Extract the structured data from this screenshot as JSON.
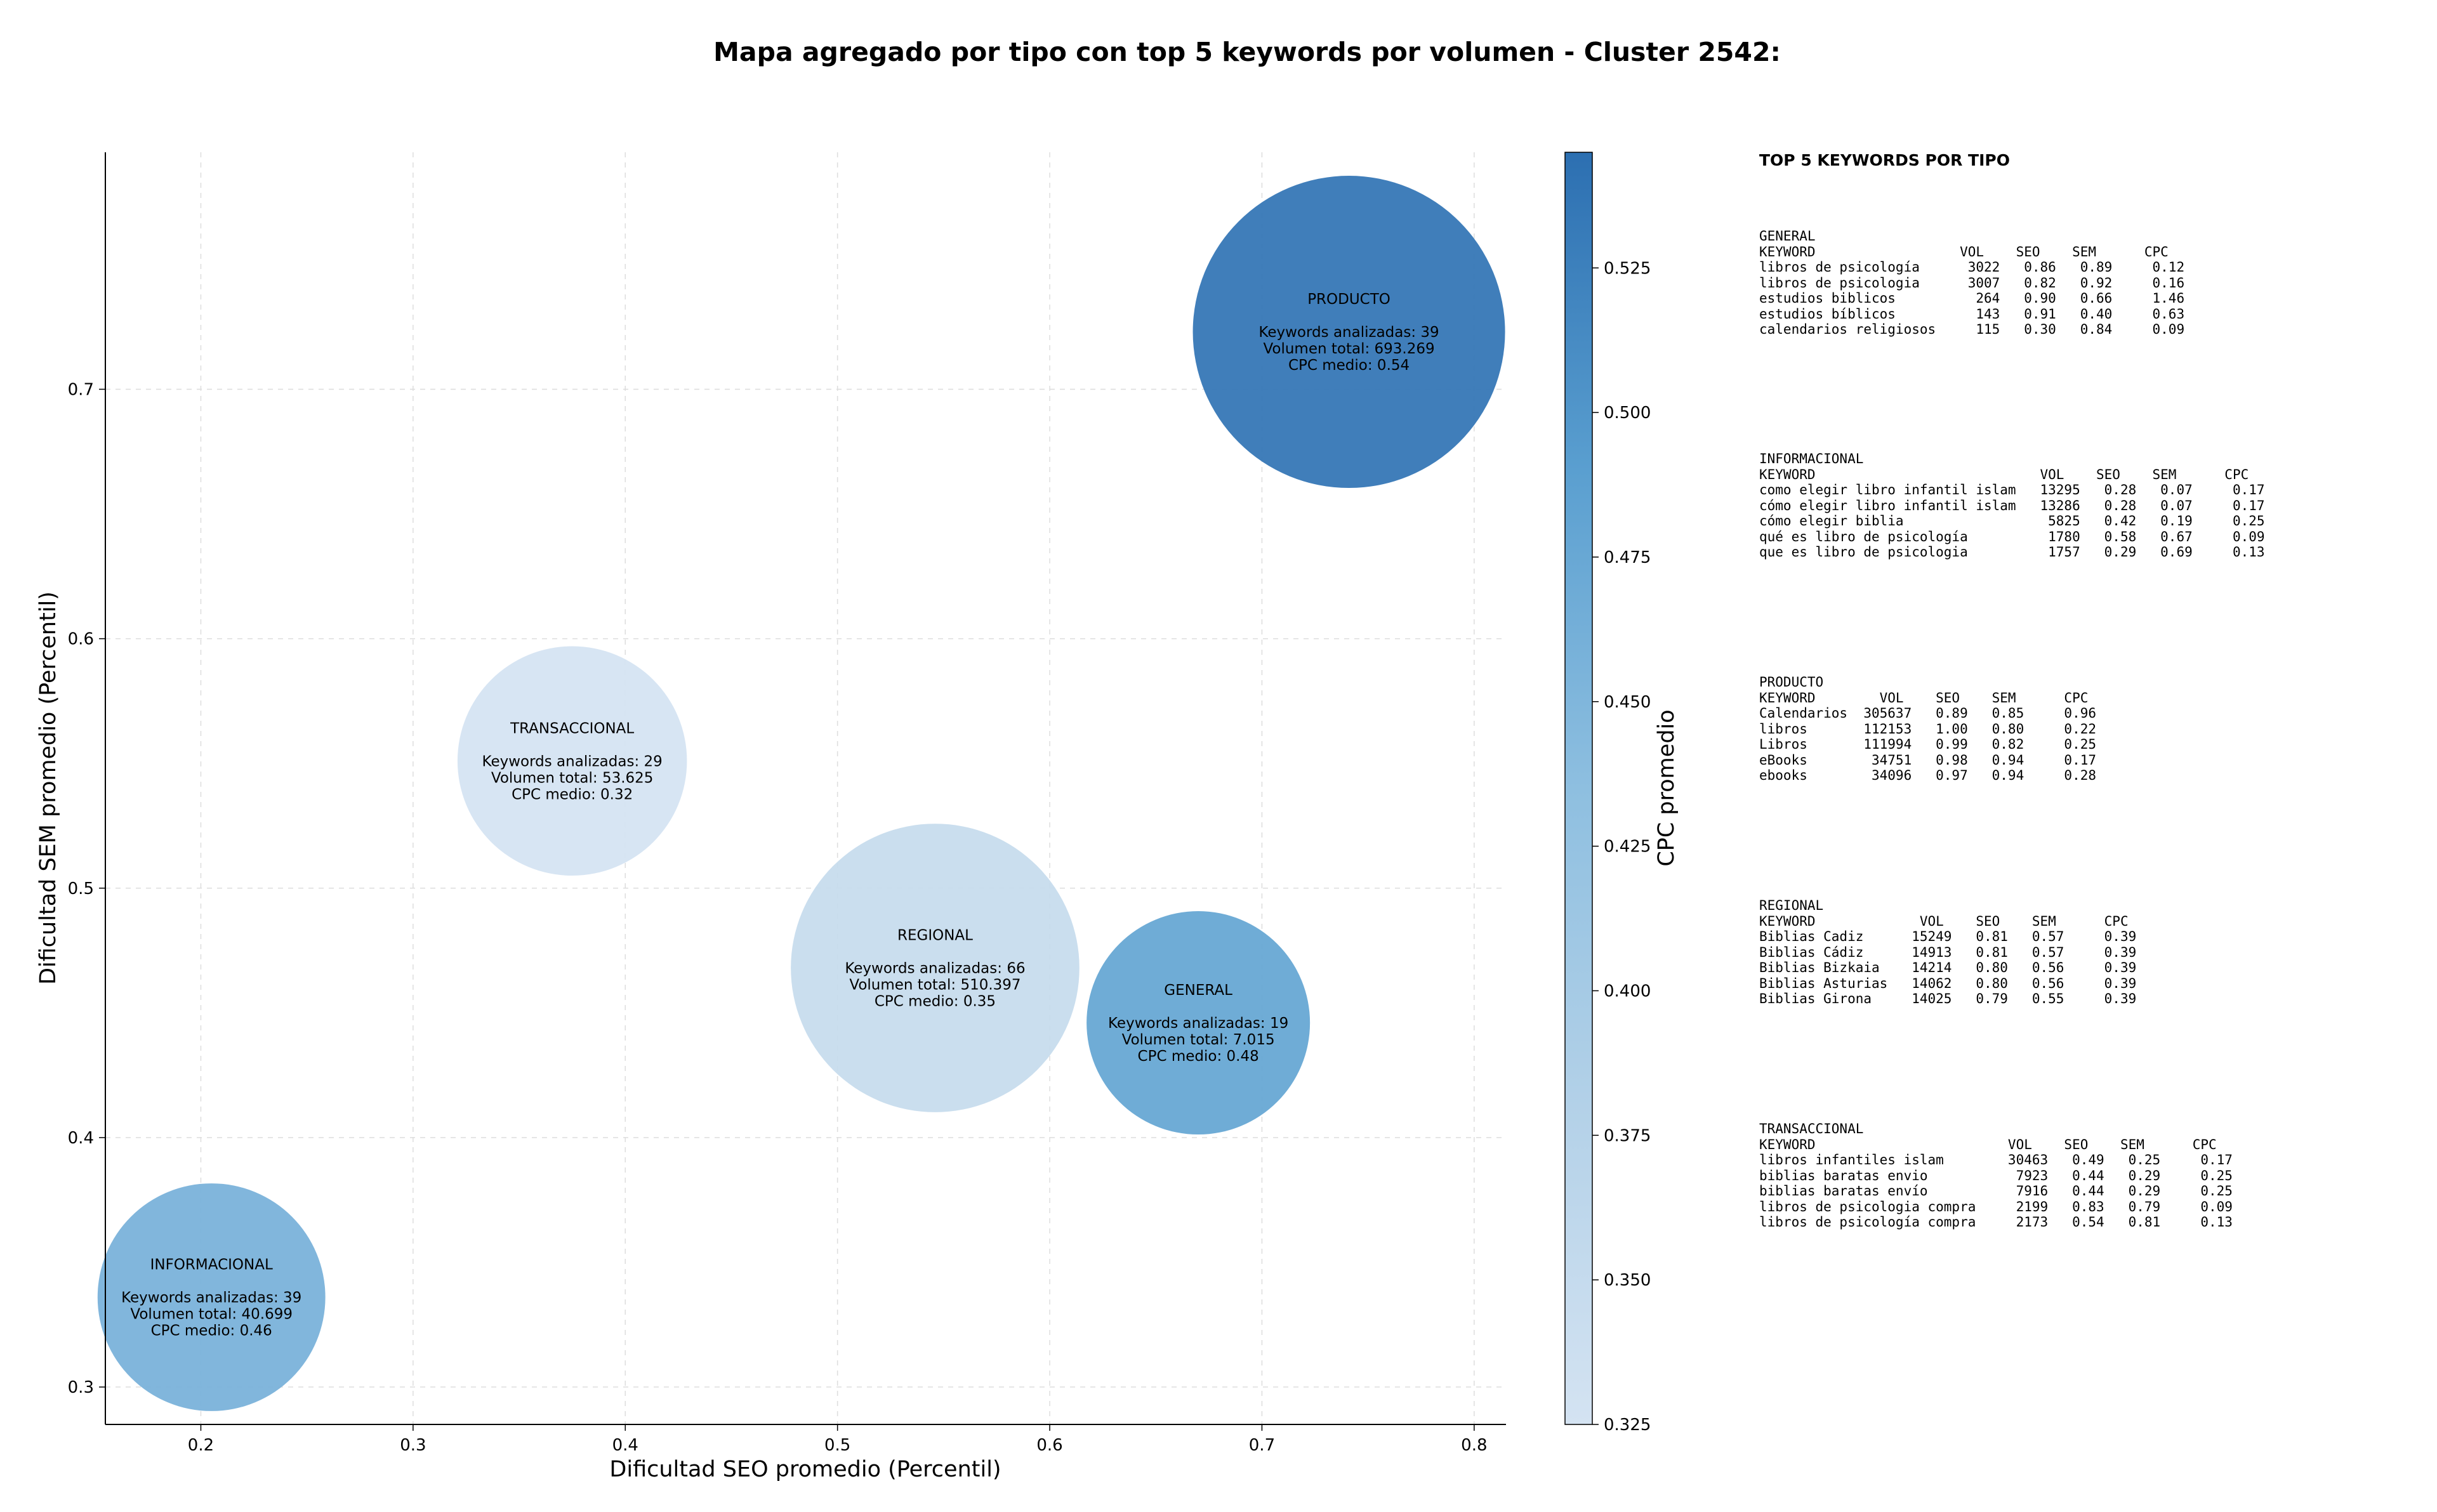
{
  "chart_data": {
    "type": "scatter",
    "title": "Mapa agregado por tipo con top 5 keywords por volumen - Cluster 2542:",
    "xlabel": "Dificultad SEO promedio (Percentil)",
    "ylabel": "Dificultad SEM promedio (Percentil)",
    "xlim": [
      0.155,
      0.815
    ],
    "ylim": [
      0.285,
      0.795
    ],
    "xticks": [
      "0.2",
      "0.3",
      "0.4",
      "0.5",
      "0.6",
      "0.7",
      "0.8"
    ],
    "yticks": [
      "0.3",
      "0.4",
      "0.5",
      "0.6",
      "0.7"
    ],
    "grid": true,
    "colorbar": {
      "label": "CPC promedio",
      "range": [
        0.325,
        0.545
      ],
      "ticks": [
        "0.325",
        "0.350",
        "0.375",
        "0.400",
        "0.425",
        "0.450",
        "0.475",
        "0.500",
        "0.525"
      ]
    },
    "points": [
      {
        "name": "PRODUCTO",
        "x": 0.741,
        "y": 0.723,
        "keywords_label": "Keywords analizadas: 39",
        "volume_label": "Volumen total: 693.269",
        "cpc_label": "CPC medio: 0.54",
        "volume": 693269,
        "cpc": 0.54
      },
      {
        "name": "TRANSACCIONAL",
        "x": 0.375,
        "y": 0.551,
        "keywords_label": "Keywords analizadas: 29",
        "volume_label": "Volumen total: 53.625",
        "cpc_label": "CPC medio: 0.32",
        "volume": 53625,
        "cpc": 0.32
      },
      {
        "name": "REGIONAL",
        "x": 0.546,
        "y": 0.468,
        "keywords_label": "Keywords analizadas: 66",
        "volume_label": "Volumen total: 510.397",
        "cpc_label": "CPC medio: 0.35",
        "volume": 510397,
        "cpc": 0.35
      },
      {
        "name": "GENERAL",
        "x": 0.67,
        "y": 0.446,
        "keywords_label": "Keywords analizadas: 19",
        "volume_label": "Volumen total: 7.015",
        "cpc_label": "CPC medio: 0.48",
        "volume": 7015,
        "cpc": 0.48
      },
      {
        "name": "INFORMACIONAL",
        "x": 0.205,
        "y": 0.336,
        "keywords_label": "Keywords analizadas: 39",
        "volume_label": "Volumen total: 40.699",
        "cpc_label": "CPC medio: 0.46",
        "volume": 40699,
        "cpc": 0.46
      }
    ]
  },
  "top_keywords": {
    "title": "TOP 5 KEYWORDS POR TIPO",
    "groups": [
      {
        "name": "GENERAL",
        "header": "KEYWORD                  VOL    SEO    SEM      CPC",
        "rows": [
          "libros de psicología      3022   0.86   0.89     0.12",
          "libros de psicologia      3007   0.82   0.92     0.16",
          "estudios biblicos          264   0.90   0.66     1.46",
          "estudios bíblicos          143   0.91   0.40     0.63",
          "calendarios religiosos     115   0.30   0.84     0.09"
        ]
      },
      {
        "name": "INFORMACIONAL",
        "header": "KEYWORD                            VOL    SEO    SEM      CPC",
        "rows": [
          "como elegir libro infantil islam   13295   0.28   0.07     0.17",
          "cómo elegir libro infantil islam   13286   0.28   0.07     0.17",
          "cómo elegir biblia                  5825   0.42   0.19     0.25",
          "qué es libro de psicología          1780   0.58   0.67     0.09",
          "que es libro de psicologia          1757   0.29   0.69     0.13"
        ]
      },
      {
        "name": "PRODUCTO",
        "header": "KEYWORD        VOL    SEO    SEM      CPC",
        "rows": [
          "Calendarios  305637   0.89   0.85     0.96",
          "libros       112153   1.00   0.80     0.22",
          "Libros       111994   0.99   0.82     0.25",
          "eBooks        34751   0.98   0.94     0.17",
          "ebooks        34096   0.97   0.94     0.28"
        ]
      },
      {
        "name": "REGIONAL",
        "header": "KEYWORD             VOL    SEO    SEM      CPC",
        "rows": [
          "Biblias Cadiz      15249   0.81   0.57     0.39",
          "Biblias Cádiz      14913   0.81   0.57     0.39",
          "Biblias Bizkaia    14214   0.80   0.56     0.39",
          "Biblias Asturias   14062   0.80   0.56     0.39",
          "Biblias Girona     14025   0.79   0.55     0.39"
        ]
      },
      {
        "name": "TRANSACCIONAL",
        "header": "KEYWORD                        VOL    SEO    SEM      CPC",
        "rows": [
          "libros infantiles islam        30463   0.49   0.25     0.17",
          "biblias baratas envio           7923   0.44   0.29     0.25",
          "biblias baratas envío           7916   0.44   0.29     0.25",
          "libros de psicologia compra     2199   0.83   0.79     0.09",
          "libros de psicología compra     2173   0.54   0.81     0.13"
        ]
      }
    ]
  }
}
